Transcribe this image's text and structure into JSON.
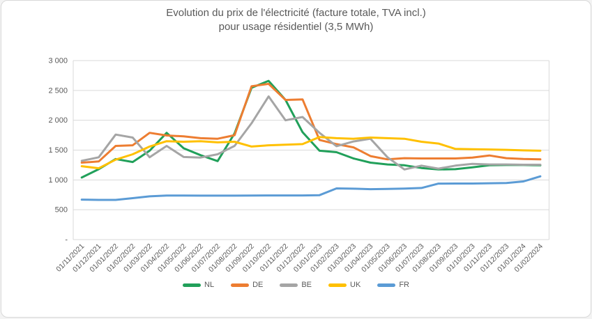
{
  "chart_data": {
    "type": "line",
    "title_lines": [
      "Evolution du prix de l'électricité (facture totale, TVA incl.)",
      "pour usage résidentiel (3,5 MWh)"
    ],
    "categories": [
      "01/11/2021",
      "01/12/2021",
      "01/01/2022",
      "01/02/2022",
      "01/03/2022",
      "01/04/2022",
      "01/05/2022",
      "01/06/2022",
      "01/07/2022",
      "01/08/2022",
      "01/09/2022",
      "01/10/2022",
      "01/11/2022",
      "01/12/2022",
      "01/01/2023",
      "01/02/2023",
      "01/03/2023",
      "01/04/2023",
      "01/05/2023",
      "01/06/2023",
      "01/07/2023",
      "01/08/2023",
      "01/09/2023",
      "01/10/2023",
      "01/11/2023",
      "01/12/2023",
      "01/01/2024",
      "01/02/2024"
    ],
    "y_ticks": [
      {
        "label": "3 000",
        "value": 3000
      },
      {
        "label": "2 500",
        "value": 2500
      },
      {
        "label": "2 000",
        "value": 2000
      },
      {
        "label": "1 500",
        "value": 1500
      },
      {
        "label": "1 000",
        "value": 1000
      },
      {
        "label": "500",
        "value": 500
      },
      {
        "label": "-",
        "value": 0
      }
    ],
    "ylim": [
      0,
      3000
    ],
    "grid": "horizontal",
    "legend_position": "bottom",
    "axis_color": "#d9d9d9",
    "label_color": "#595959",
    "series": [
      {
        "name": "NL",
        "color": "#21a05a",
        "values": [
          1040,
          1180,
          1350,
          1300,
          1490,
          1790,
          1530,
          1415,
          1315,
          1780,
          2545,
          2660,
          2340,
          1800,
          1490,
          1465,
          1360,
          1290,
          1260,
          1245,
          1200,
          1175,
          1180,
          1210,
          1245,
          1250,
          1250,
          1245
        ]
      },
      {
        "name": "DE",
        "color": "#ed7d31",
        "values": [
          1290,
          1310,
          1570,
          1580,
          1790,
          1745,
          1730,
          1700,
          1690,
          1750,
          2570,
          2610,
          2340,
          2350,
          1670,
          1600,
          1545,
          1400,
          1345,
          1365,
          1360,
          1360,
          1360,
          1375,
          1410,
          1365,
          1350,
          1345
        ]
      },
      {
        "name": "BE",
        "color": "#a5a5a5",
        "values": [
          1320,
          1380,
          1760,
          1710,
          1380,
          1570,
          1385,
          1375,
          1430,
          1570,
          1950,
          2400,
          2000,
          2055,
          1790,
          1565,
          1645,
          1690,
          1380,
          1175,
          1240,
          1190,
          1240,
          1270,
          1260,
          1260,
          1255,
          1255
        ]
      },
      {
        "name": "UK",
        "color": "#ffc000",
        "values": [
          1230,
          1195,
          1340,
          1430,
          1560,
          1650,
          1640,
          1650,
          1630,
          1640,
          1560,
          1580,
          1590,
          1600,
          1720,
          1700,
          1690,
          1710,
          1700,
          1690,
          1640,
          1610,
          1520,
          1515,
          1510,
          1505,
          1495,
          1490
        ]
      },
      {
        "name": "FR",
        "color": "#5b9bd5",
        "values": [
          670,
          665,
          665,
          695,
          725,
          738,
          738,
          737,
          736,
          736,
          738,
          740,
          740,
          740,
          745,
          858,
          853,
          845,
          850,
          855,
          865,
          938,
          940,
          940,
          944,
          948,
          975,
          1060
        ]
      }
    ]
  }
}
